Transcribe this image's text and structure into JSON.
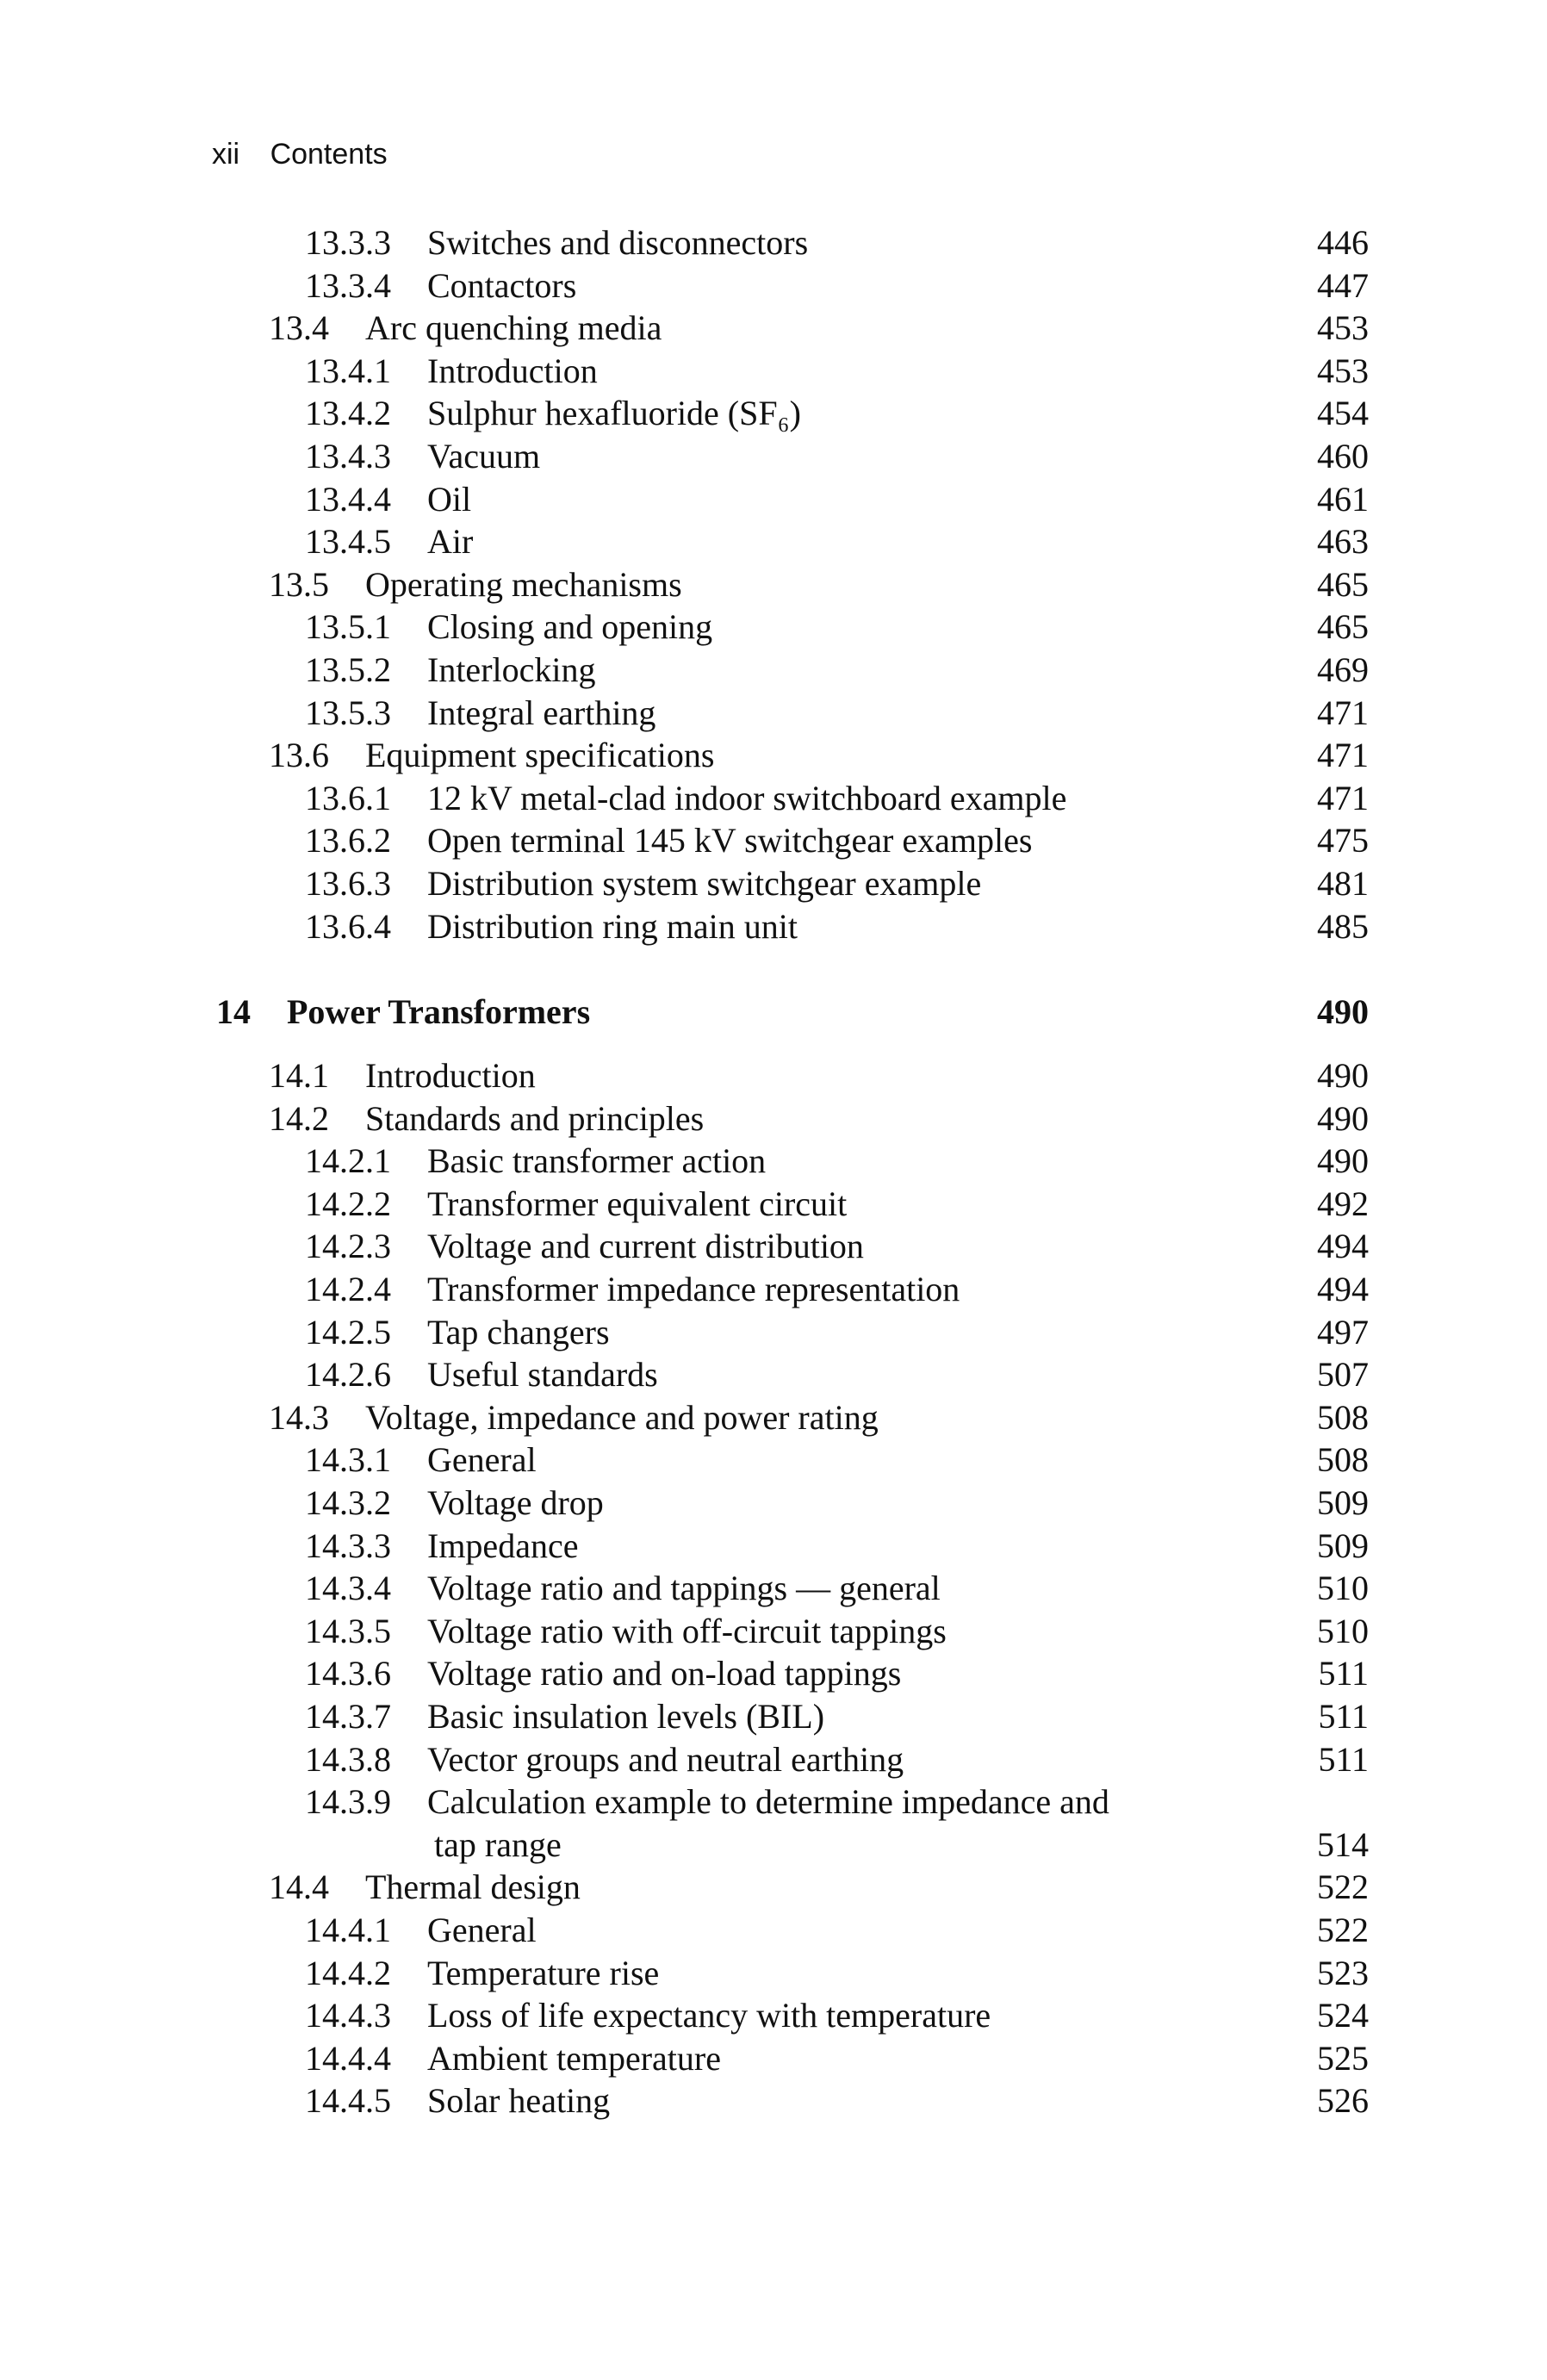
{
  "header": {
    "page_number": "xii",
    "running_title": "Contents"
  },
  "groups": [
    {
      "entries": [
        {
          "level": 3,
          "num": "13.3.3",
          "title": "Switches and disconnectors",
          "page": "446"
        },
        {
          "level": 3,
          "num": "13.3.4",
          "title": "Contactors",
          "page": "447"
        },
        {
          "level": 2,
          "num": "13.4",
          "title": "Arc quenching media",
          "page": "453"
        },
        {
          "level": 3,
          "num": "13.4.1",
          "title": "Introduction",
          "page": "453"
        },
        {
          "level": 3,
          "num": "13.4.2",
          "title": "Sulphur hexafluoride (SF₆)",
          "page": "454"
        },
        {
          "level": 3,
          "num": "13.4.3",
          "title": "Vacuum",
          "page": "460"
        },
        {
          "level": 3,
          "num": "13.4.4",
          "title": "Oil",
          "page": "461"
        },
        {
          "level": 3,
          "num": "13.4.5",
          "title": "Air",
          "page": "463"
        },
        {
          "level": 2,
          "num": "13.5",
          "title": "Operating mechanisms",
          "page": "465"
        },
        {
          "level": 3,
          "num": "13.5.1",
          "title": "Closing and opening",
          "page": "465"
        },
        {
          "level": 3,
          "num": "13.5.2",
          "title": "Interlocking",
          "page": "469"
        },
        {
          "level": 3,
          "num": "13.5.3",
          "title": "Integral earthing",
          "page": "471"
        },
        {
          "level": 2,
          "num": "13.6",
          "title": "Equipment specifications",
          "page": "471"
        },
        {
          "level": 3,
          "num": "13.6.1",
          "title": "12 kV metal-clad indoor switchboard example",
          "page": "471"
        },
        {
          "level": 3,
          "num": "13.6.2",
          "title": "Open terminal 145 kV switchgear examples",
          "page": "475"
        },
        {
          "level": 3,
          "num": "13.6.3",
          "title": "Distribution system switchgear example",
          "page": "481"
        },
        {
          "level": 3,
          "num": "13.6.4",
          "title": "Distribution ring main unit",
          "page": "485"
        }
      ]
    },
    {
      "entries": [
        {
          "level": 1,
          "num": "14",
          "title": "Power Transformers",
          "page": "490"
        }
      ]
    },
    {
      "entries": [
        {
          "level": 2,
          "num": "14.1",
          "title": "Introduction",
          "page": "490"
        },
        {
          "level": 2,
          "num": "14.2",
          "title": "Standards and principles",
          "page": "490"
        },
        {
          "level": 3,
          "num": "14.2.1",
          "title": "Basic transformer action",
          "page": "490"
        },
        {
          "level": 3,
          "num": "14.2.2",
          "title": "Transformer equivalent circuit",
          "page": "492"
        },
        {
          "level": 3,
          "num": "14.2.3",
          "title": "Voltage and current distribution",
          "page": "494"
        },
        {
          "level": 3,
          "num": "14.2.4",
          "title": "Transformer impedance representation",
          "page": "494"
        },
        {
          "level": 3,
          "num": "14.2.5",
          "title": "Tap changers",
          "page": "497"
        },
        {
          "level": 3,
          "num": "14.2.6",
          "title": "Useful standards",
          "page": "507"
        },
        {
          "level": 2,
          "num": "14.3",
          "title": "Voltage, impedance and power rating",
          "page": "508"
        },
        {
          "level": 3,
          "num": "14.3.1",
          "title": "General",
          "page": "508"
        },
        {
          "level": 3,
          "num": "14.3.2",
          "title": "Voltage drop",
          "page": "509"
        },
        {
          "level": 3,
          "num": "14.3.3",
          "title": "Impedance",
          "page": "509"
        },
        {
          "level": 3,
          "num": "14.3.4",
          "title": "Voltage ratio and tappings — general",
          "page": "510"
        },
        {
          "level": 3,
          "num": "14.3.5",
          "title": "Voltage ratio with off-circuit tappings",
          "page": "510"
        },
        {
          "level": 3,
          "num": "14.3.6",
          "title": "Voltage ratio and on-load tappings",
          "page": "511"
        },
        {
          "level": 3,
          "num": "14.3.7",
          "title": "Basic insulation levels (BIL)",
          "page": "511"
        },
        {
          "level": 3,
          "num": "14.3.8",
          "title": "Vector groups and neutral earthing",
          "page": "511"
        },
        {
          "level": 3,
          "num": "14.3.9",
          "title": "Calculation example to determine impedance and",
          "continuation": "tap range",
          "page": "514"
        },
        {
          "level": 2,
          "num": "14.4",
          "title": "Thermal design",
          "page": "522"
        },
        {
          "level": 3,
          "num": "14.4.1",
          "title": "General",
          "page": "522"
        },
        {
          "level": 3,
          "num": "14.4.2",
          "title": "Temperature rise",
          "page": "523"
        },
        {
          "level": 3,
          "num": "14.4.3",
          "title": "Loss of life expectancy with temperature",
          "page": "524"
        },
        {
          "level": 3,
          "num": "14.4.4",
          "title": "Ambient temperature",
          "page": "525"
        },
        {
          "level": 3,
          "num": "14.4.5",
          "title": "Solar heating",
          "page": "526"
        }
      ]
    }
  ]
}
